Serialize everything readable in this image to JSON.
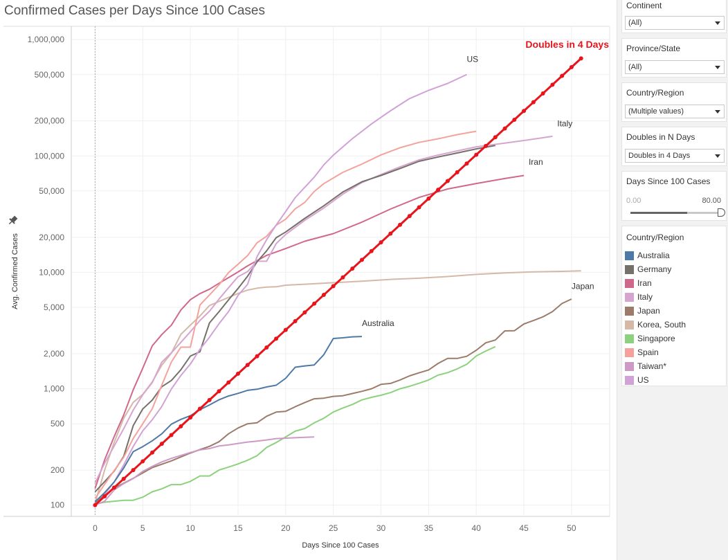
{
  "chart_data": {
    "type": "line",
    "title": "Confirmed Cases per Days Since 100 Cases",
    "xlabel": "Days Since 100 Cases",
    "ylabel": "Avg. Confirmed Cases",
    "x_scale": "linear",
    "y_scale": "log",
    "xlim": [
      -2.5,
      54
    ],
    "ylim": [
      80,
      1300000
    ],
    "x_ticks": [
      0,
      5,
      10,
      15,
      20,
      25,
      30,
      35,
      40,
      45,
      50
    ],
    "y_ticks": [
      100,
      200,
      500,
      1000,
      2000,
      5000,
      10000,
      20000,
      50000,
      100000,
      200000,
      500000,
      1000000
    ],
    "y_tick_labels": [
      "100",
      "200",
      "500",
      "1,000",
      "2,000",
      "5,000",
      "10,000",
      "20,000",
      "50,000",
      "100,000",
      "200,000",
      "500,000",
      "1,000,000"
    ],
    "grid": true,
    "reference_line": {
      "name": "Doubles in 4 Days",
      "color": "#e8141c",
      "start": 100,
      "doubling_days": 4,
      "x_end": 51
    },
    "series": [
      {
        "name": "Korea, South",
        "color": "#d5b9a6",
        "x": [
          0,
          1,
          2,
          3,
          4,
          5,
          6,
          7,
          8,
          9,
          10,
          11,
          12,
          13,
          14,
          15,
          16,
          17,
          18,
          19,
          20,
          22,
          25,
          28,
          31,
          34,
          37,
          40,
          43,
          46,
          49,
          51
        ],
        "y": [
          104,
          200,
          346,
          556,
          763,
          893,
          1146,
          1595,
          2022,
          2931,
          3526,
          4212,
          5186,
          5621,
          6088,
          6593,
          7041,
          7314,
          7478,
          7513,
          7755,
          7900,
          8150,
          8400,
          8700,
          8900,
          9200,
          9600,
          9900,
          10100,
          10200,
          10300
        ]
      },
      {
        "name": "Iran",
        "color": "#d0688c",
        "x": [
          0,
          1,
          2,
          3,
          4,
          5,
          6,
          7,
          8,
          9,
          10,
          11,
          12,
          13,
          14,
          15,
          16,
          18,
          20,
          22,
          25,
          28,
          31,
          34,
          37,
          40,
          43,
          45
        ],
        "y": [
          139,
          245,
          388,
          593,
          978,
          1501,
          2336,
          2922,
          3513,
          4747,
          5823,
          6566,
          7161,
          8042,
          9000,
          10075,
          11364,
          14000,
          16000,
          18500,
          21500,
          27000,
          35000,
          44000,
          52000,
          58000,
          64000,
          68000
        ]
      },
      {
        "name": "Italy",
        "color": "#d6a5cf",
        "x": [
          0,
          1,
          2,
          3,
          4,
          5,
          6,
          7,
          8,
          9,
          10,
          11,
          12,
          13,
          14,
          15,
          16,
          17,
          18,
          19,
          20,
          22,
          24,
          26,
          28,
          30,
          32,
          34,
          36,
          38,
          40,
          43,
          46,
          48
        ],
        "y": [
          155,
          229,
          322,
          453,
          655,
          888,
          1128,
          1694,
          2036,
          2502,
          3089,
          3858,
          4636,
          5883,
          7375,
          9172,
          10149,
          12462,
          12462,
          17660,
          21157,
          27980,
          35713,
          47021,
          59138,
          69176,
          80589,
          92472,
          101739,
          110574,
          119827,
          128948,
          139422,
          147577
        ]
      },
      {
        "name": "Germany",
        "color": "#76706b",
        "x": [
          0,
          1,
          2,
          3,
          4,
          5,
          6,
          7,
          8,
          9,
          10,
          11,
          12,
          13,
          14,
          15,
          16,
          17,
          18,
          19,
          20,
          22,
          24,
          26,
          28,
          30,
          32,
          34,
          36,
          38,
          40,
          42
        ],
        "y": [
          130,
          159,
          196,
          262,
          482,
          670,
          799,
          1040,
          1176,
          1457,
          1908,
          2078,
          3675,
          4585,
          5795,
          7272,
          9257,
          12327,
          15320,
          19848,
          22213,
          29056,
          37323,
          49000,
          60000,
          68000,
          78000,
          90000,
          98000,
          106000,
          115000,
          123000
        ]
      },
      {
        "name": "Spain",
        "color": "#f4a29b",
        "x": [
          0,
          1,
          2,
          3,
          4,
          5,
          6,
          7,
          8,
          9,
          10,
          11,
          12,
          13,
          14,
          15,
          16,
          17,
          18,
          19,
          20,
          21,
          22,
          23,
          24,
          26,
          28,
          30,
          32,
          34,
          36,
          38,
          40
        ],
        "y": [
          114,
          151,
          198,
          257,
          374,
          500,
          673,
          1073,
          1695,
          2277,
          2277,
          5232,
          6391,
          7798,
          9942,
          11748,
          13910,
          17963,
          20410,
          25374,
          28603,
          35136,
          39885,
          49515,
          57786,
          72248,
          85195,
          102136,
          117710,
          130759,
          140510,
          152446,
          163027
        ]
      },
      {
        "name": "US",
        "color": "#d0a2d5",
        "x": [
          0,
          1,
          2,
          3,
          4,
          5,
          6,
          7,
          8,
          9,
          10,
          11,
          12,
          13,
          14,
          15,
          16,
          17,
          18,
          19,
          20,
          21,
          22,
          23,
          24,
          25,
          27,
          29,
          31,
          33,
          35,
          37,
          39
        ],
        "y": [
          104,
          124,
          158,
          221,
          319,
          435,
          541,
          704,
          994,
          1301,
          1630,
          2183,
          2770,
          3613,
          4596,
          6344,
          7869,
          13680,
          19101,
          25493,
          33276,
          43847,
          53740,
          65778,
          83836,
          101657,
          140886,
          188172,
          244610,
          311357,
          366317,
          420000,
          501000
        ]
      },
      {
        "name": "Japan",
        "color": "#9c7b6a",
        "x": [
          0,
          2,
          4,
          6,
          8,
          10,
          11,
          12,
          13,
          14,
          15,
          16,
          17,
          18,
          19,
          20,
          21,
          22,
          23,
          24,
          25,
          26,
          27,
          28,
          29,
          30,
          31,
          32,
          33,
          34,
          35,
          36,
          37,
          38,
          39,
          40,
          41,
          42,
          43,
          44,
          45,
          46,
          47,
          48,
          49,
          50
        ],
        "y": [
          105,
          140,
          170,
          210,
          240,
          280,
          300,
          320,
          350,
          410,
          460,
          500,
          510,
          580,
          630,
          640,
          700,
          760,
          820,
          830,
          860,
          870,
          910,
          950,
          1000,
          1090,
          1110,
          1190,
          1290,
          1370,
          1450,
          1650,
          1820,
          1820,
          1900,
          2140,
          2480,
          2620,
          3140,
          3150,
          3600,
          3850,
          4150,
          4600,
          5400,
          5900
        ]
      },
      {
        "name": "Australia",
        "color": "#4e79a7",
        "x": [
          0,
          1,
          2,
          3,
          4,
          5,
          6,
          7,
          8,
          9,
          10,
          11,
          12,
          13,
          14,
          15,
          16,
          17,
          18,
          19,
          20,
          21,
          22,
          23,
          24,
          25,
          26,
          27,
          28
        ],
        "y": [
          107,
          128,
          158,
          208,
          288,
          318,
          357,
          410,
          496,
          546,
          586,
          661,
          726,
          803,
          866,
          912,
          968,
          990,
          1036,
          1072,
          1229,
          1530,
          1570,
          1600,
          1960,
          2700,
          2740,
          2790,
          2810
        ]
      },
      {
        "name": "Singapore",
        "color": "#8cd17d",
        "x": [
          0,
          1,
          2,
          3,
          4,
          5,
          6,
          7,
          8,
          9,
          10,
          11,
          12,
          13,
          14,
          15,
          16,
          17,
          18,
          19,
          20,
          21,
          22,
          23,
          24,
          25,
          26,
          27,
          28,
          29,
          30,
          31,
          32,
          33,
          34,
          35,
          36,
          37,
          38,
          39,
          40,
          41,
          42
        ],
        "y": [
          102,
          106,
          108,
          110,
          110,
          117,
          130,
          138,
          150,
          150,
          160,
          178,
          178,
          200,
          212,
          226,
          243,
          266,
          313,
          345,
          385,
          432,
          455,
          509,
          558,
          631,
          683,
          732,
          802,
          844,
          879,
          926,
          1000,
          1049,
          1114,
          1189,
          1309,
          1375,
          1481,
          1623,
          1910,
          2108,
          2299
        ]
      },
      {
        "name": "Taiwan*",
        "color": "#cd9ac6",
        "x": [
          0,
          1,
          2,
          3,
          4,
          5,
          6,
          7,
          8,
          9,
          10,
          11,
          12,
          13,
          14,
          15,
          16,
          17,
          18,
          19,
          20,
          21,
          22,
          23
        ],
        "y": [
          100,
          108,
          135,
          153,
          169,
          195,
          215,
          235,
          252,
          267,
          283,
          298,
          306,
          322,
          329,
          339,
          348,
          355,
          363,
          373,
          376,
          379,
          382,
          385
        ]
      }
    ],
    "annotations": [
      {
        "text": "US",
        "x": 39,
        "y": 640000,
        "color": "#333333"
      },
      {
        "text": "Italy",
        "x": 48.5,
        "y": 180000,
        "color": "#333333"
      },
      {
        "text": "Iran",
        "x": 45.5,
        "y": 84000,
        "color": "#333333"
      },
      {
        "text": "Japan",
        "x": 50,
        "y": 7200,
        "color": "#333333"
      },
      {
        "text": "Australia",
        "x": 28,
        "y": 3450,
        "color": "#333333"
      },
      {
        "text": "Doubles in 4 Days",
        "x": 51,
        "y": 850000,
        "color": "#e8141c"
      }
    ],
    "legend": {
      "title": "Country/Region",
      "position": "right"
    }
  },
  "filters": {
    "continent": {
      "title": "Continent",
      "value": "(All)"
    },
    "province": {
      "title": "Province/State",
      "value": "(All)"
    },
    "country": {
      "title": "Country/Region",
      "value": "(Multiple values)"
    },
    "doubles": {
      "title": "Doubles in N Days",
      "value": "Doubles in 4 Days"
    },
    "days_range": {
      "title": "Days Since 100 Cases",
      "min_label": "0.00",
      "max_label": "80.00",
      "fill_fraction": 0.63
    }
  },
  "legend_items": [
    {
      "label": "Australia",
      "color": "#4e79a7"
    },
    {
      "label": "Germany",
      "color": "#76706b"
    },
    {
      "label": "Iran",
      "color": "#d0688c"
    },
    {
      "label": "Italy",
      "color": "#d6a5cf"
    },
    {
      "label": "Japan",
      "color": "#9c7b6a"
    },
    {
      "label": "Korea, South",
      "color": "#d5b9a6"
    },
    {
      "label": "Singapore",
      "color": "#8cd17d"
    },
    {
      "label": "Spain",
      "color": "#f4a29b"
    },
    {
      "label": "Taiwan*",
      "color": "#cd9ac6"
    },
    {
      "label": "US",
      "color": "#d0a2d5"
    }
  ]
}
